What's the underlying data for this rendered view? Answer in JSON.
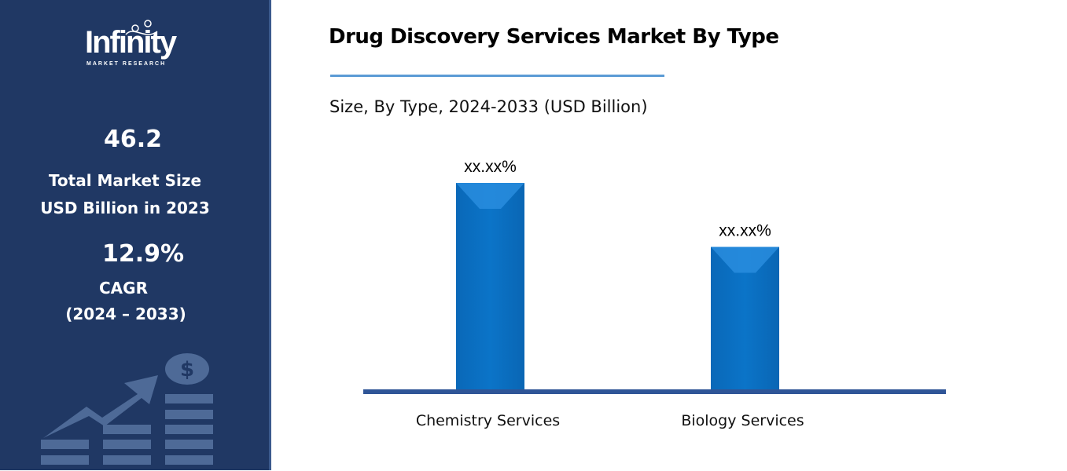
{
  "sidebar": {
    "logo_text": "Infinity",
    "logo_subtext": "MARKET RESEARCH",
    "market_size_value": "46.2",
    "market_size_label_1": "Total Market Size",
    "market_size_label_2": "USD Billion in 2023",
    "cagr_value": "12.9%",
    "cagr_label": "CAGR",
    "cagr_period": "(2024 – 2033)",
    "decor_icon": "growth-chart-dollar-icon"
  },
  "colors": {
    "sidebar": "#203864",
    "bar": "#0a6fc2",
    "axis": "#2f5597",
    "rule": "#5b9bd5"
  },
  "chart_data": {
    "type": "bar",
    "title": "Drug Discovery Services Market By Type",
    "subtitle": "Size, By Type, 2024-2033 (USD Billion)",
    "categories": [
      "Chemistry Services",
      "Biology Services"
    ],
    "data_labels": [
      "xx.xx%",
      "xx.xx%"
    ],
    "relative_values": [
      1.0,
      0.69
    ],
    "grid": false,
    "legend": "none"
  }
}
